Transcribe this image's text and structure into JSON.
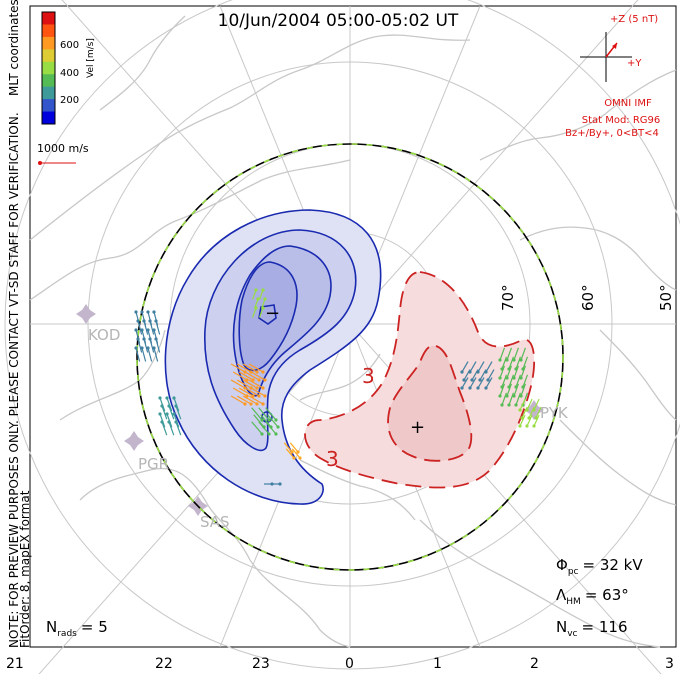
{
  "title": "10/Jun/2004 05:00-05:02 UT",
  "coordinates": "MLT coordinates",
  "vel_scale": {
    "unit_label": "Vel [m/s]",
    "ticks": [
      "600",
      "400",
      "200"
    ],
    "colors": [
      "#0000dd",
      "#3355cc",
      "#3f9a9a",
      "#55bb55",
      "#99dd44",
      "#ddcc33",
      "#ff9922",
      "#ff5511",
      "#dd1111"
    ]
  },
  "vector_scale": "1000 m/s",
  "preview_note": "NOTE: FOR PREVIEW PURPOSES ONLY. PLEASE CONTACT VT-SD STAFF FOR VERIFICATION.",
  "fit_info": "FitOrder: 8, mapEX format",
  "imf": {
    "z_label": "+Z (5 nT)",
    "y_label": "+Y",
    "source": "OMNI IMF",
    "model": "Stat Mod: RG96",
    "condition": "Bz+/By+, 0<BT<4"
  },
  "lat_labels": [
    "70°",
    "60°",
    "50°"
  ],
  "mlt_labels": [
    "21",
    "22",
    "23",
    "0",
    "1",
    "2",
    "3"
  ],
  "stations": [
    "KOD",
    "PGR",
    "SAS",
    "PYK"
  ],
  "contour_labels": [
    "3",
    "3"
  ],
  "stats": {
    "phi_pc_label": "Φ",
    "phi_pc_sub": "pc",
    "phi_pc_value": "= 32 kV",
    "lambda_hm_label": "Λ",
    "lambda_hm_sub": "HM",
    "lambda_hm_value": "= 63°",
    "n_vc_label": "N",
    "n_vc_sub": "vc",
    "n_vc_value": "= 116",
    "n_rads_label": "N",
    "n_rads_sub": "rads",
    "n_rads_value": "= 5"
  },
  "colors": {
    "map_lines": "#c8c8c8",
    "negative_cell": "#1a2ab0",
    "negative_fill": "#dfe2f4",
    "negative_fill_inner": "#b9bee9",
    "positive_cell": "#cc2222",
    "positive_fill": "#f6dcdc",
    "hm_boundary_dash": "#99dd44",
    "imf_text": "#dd1111"
  }
}
